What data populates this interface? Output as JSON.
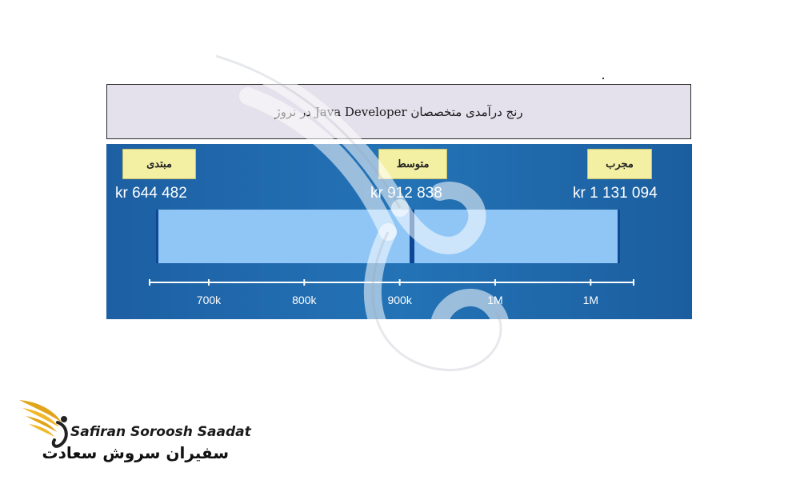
{
  "chart_data": {
    "type": "range",
    "title": "رنج درآمدی متخصصان Java Developer در نروژ",
    "levels": [
      {
        "label": "مبتدی",
        "value": 644482,
        "value_text": "kr 644 482"
      },
      {
        "label": "متوسط",
        "value": 912838,
        "value_text": "kr 912 838"
      },
      {
        "label": "مجرب",
        "value": 1131094,
        "value_text": "kr 1 131 094"
      }
    ],
    "x_ticks": [
      {
        "value": 700000,
        "label": "700k"
      },
      {
        "value": 800000,
        "label": "800k"
      },
      {
        "value": 900000,
        "label": "900k"
      },
      {
        "value": 1000000,
        "label": "1M"
      },
      {
        "value": 1100000,
        "label": "1M"
      }
    ],
    "xlim": [
      638000,
      1145000
    ],
    "colors": {
      "panel": "#1d69ad",
      "bar": "#8fc6f6",
      "bar_edge": "#0d4796",
      "tag": "#f3f0a4",
      "title_bg": "#e5e1ec"
    }
  },
  "logo": {
    "name_en": "Safiran Soroosh Saadat",
    "name_fa": "سفیران سروش سعادت"
  }
}
